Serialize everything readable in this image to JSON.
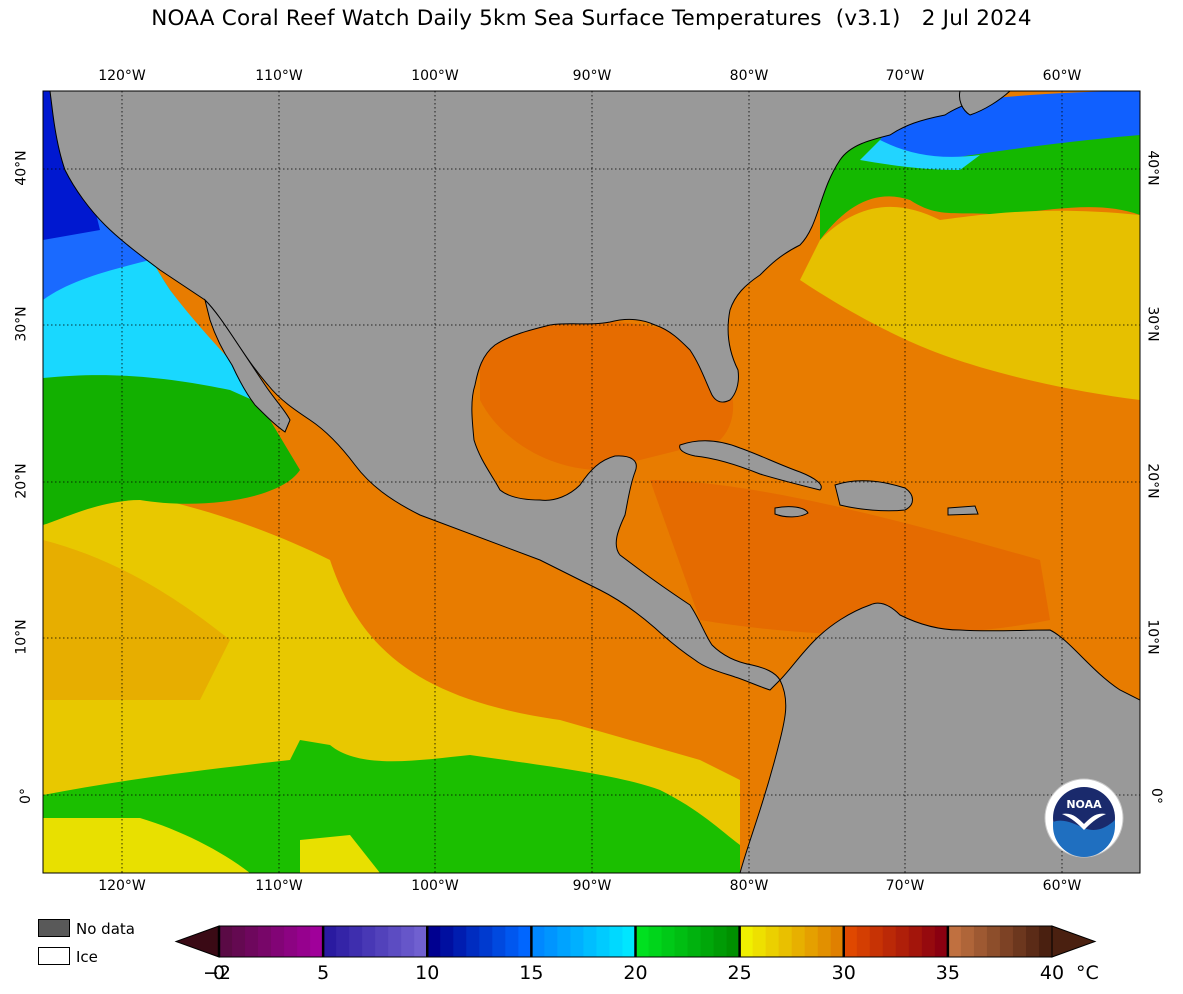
{
  "title": "NOAA Coral Reef Watch Daily 5km Sea Surface Temperatures  (v3.1)   2 Jul 2024",
  "map": {
    "lon_range": [
      -125,
      -55
    ],
    "lat_range": [
      -5,
      45
    ],
    "lon_ticks": [
      {
        "value": -120,
        "label": "120°W"
      },
      {
        "value": -110,
        "label": "110°W"
      },
      {
        "value": -100,
        "label": "100°W"
      },
      {
        "value": -90,
        "label": "90°W"
      },
      {
        "value": -80,
        "label": "80°W"
      },
      {
        "value": -70,
        "label": "70°W"
      },
      {
        "value": -60,
        "label": "60°W"
      }
    ],
    "lat_ticks": [
      {
        "value": 40,
        "label": "40°N"
      },
      {
        "value": 30,
        "label": "30°N"
      },
      {
        "value": 20,
        "label": "20°N"
      },
      {
        "value": 10,
        "label": "10°N"
      },
      {
        "value": 0,
        "label": "0°"
      }
    ],
    "grid": true,
    "land_color": "#999999",
    "ocean_dominant_color": "#e87a00"
  },
  "legend": {
    "no_data_label": "No data",
    "no_data_color": "#595959",
    "ice_label": "Ice",
    "ice_color": "#ffffff"
  },
  "colorbar": {
    "unit": "°C",
    "ticks": [
      "−2",
      "0",
      "5",
      "10",
      "15",
      "20",
      "25",
      "30",
      "35",
      "40"
    ],
    "tick_values": [
      -2,
      0,
      5,
      10,
      15,
      20,
      25,
      30,
      35,
      40
    ],
    "segments": [
      {
        "from": -2,
        "to": 0,
        "colors": [
          "#3a0a15",
          "#7a0a25"
        ]
      },
      {
        "from": 0,
        "to": 5,
        "colors": [
          "#5a0a45",
          "#a0009a"
        ]
      },
      {
        "from": 5,
        "to": 10,
        "colors": [
          "#2a1aa0",
          "#7060d0"
        ]
      },
      {
        "from": 10,
        "to": 15,
        "colors": [
          "#000090",
          "#0066ff"
        ]
      },
      {
        "from": 15,
        "to": 20,
        "colors": [
          "#0088ff",
          "#00e6ff"
        ]
      },
      {
        "from": 20,
        "to": 25,
        "colors": [
          "#00e020",
          "#009000"
        ]
      },
      {
        "from": 25,
        "to": 30,
        "colors": [
          "#f0f000",
          "#e08000"
        ]
      },
      {
        "from": 30,
        "to": 35,
        "colors": [
          "#e04800",
          "#8a0010"
        ]
      },
      {
        "from": 35,
        "to": 40,
        "colors": [
          "#c07040",
          "#4a2010"
        ]
      }
    ]
  },
  "logo": {
    "text": "NOAA"
  }
}
